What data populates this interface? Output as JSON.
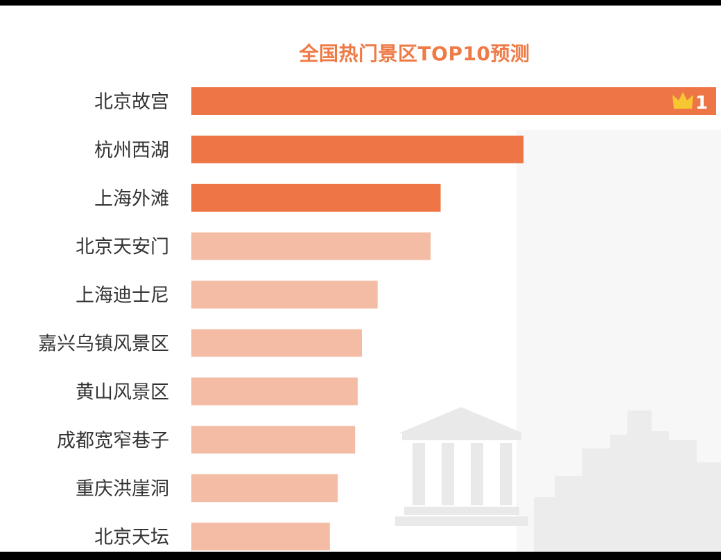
{
  "chart_data": {
    "type": "bar",
    "orientation": "horizontal",
    "title": "全国热门景区TOP10预测",
    "categories": [
      "北京故宫",
      "杭州西湖",
      "上海外滩",
      "北京天安门",
      "上海迪士尼",
      "嘉兴乌镇风景区",
      "黄山风景区",
      "成都宽窄巷子",
      "重庆洪崖洞",
      "北京天坛"
    ],
    "values": [
      100,
      63.3,
      47.5,
      45.6,
      35.5,
      32.5,
      31.7,
      31.2,
      27.9,
      26.4
    ],
    "highlight_count": 3,
    "badge": {
      "rank": "1",
      "icon": "crown-icon"
    },
    "xlim": [
      0,
      100
    ],
    "xlabel": "",
    "ylabel": "",
    "grid": false,
    "legend": "none",
    "colors": {
      "highlight": "#ee7646",
      "normal": "#f4bca5",
      "label": "#333333",
      "title": "#ee7a45",
      "badge": "#f7c731",
      "decor": "#eeeeee"
    }
  }
}
